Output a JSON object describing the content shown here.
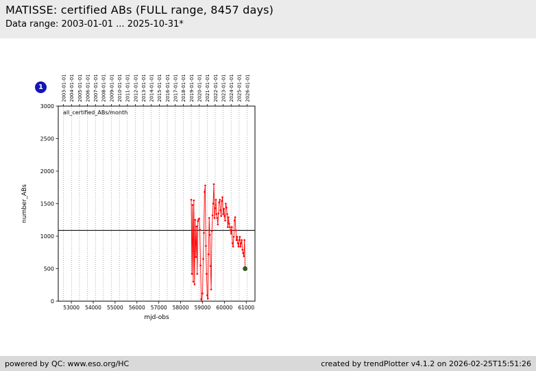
{
  "header": {
    "title": "MATISSE: certified ABs (FULL range, 8457 days)",
    "subtitle": "Data range: 2003-01-01 ... 2025-10-31*"
  },
  "badge": {
    "label": "1",
    "color": "#1414b8"
  },
  "footer": {
    "left": "powered by QC: www.eso.org/HC",
    "right": "created by trendPlotter v4.1.2 on 2026-02-25T15:51:26"
  },
  "chart_data": {
    "type": "line",
    "title": "",
    "inner_label": "all_certified_ABs/month",
    "xlabel": "mjd-obs",
    "ylabel": "number_ABs",
    "xlim": [
      52400,
      61400
    ],
    "ylim": [
      0,
      3000
    ],
    "x_ticks": [
      53000,
      54000,
      55000,
      56000,
      57000,
      58000,
      59000,
      60000,
      61000
    ],
    "y_ticks": [
      0,
      500,
      1000,
      1500,
      2000,
      2500,
      3000
    ],
    "grid": "vertical-dotted",
    "legend_position": "none",
    "mean_line": 1090,
    "top_axis": [
      {
        "label": "2003-01-01",
        "mjd": 52640
      },
      {
        "label": "2004-01-01",
        "mjd": 53005
      },
      {
        "label": "2005-01-01",
        "mjd": 53371
      },
      {
        "label": "2006-01-01",
        "mjd": 53736
      },
      {
        "label": "2007-01-01",
        "mjd": 54101
      },
      {
        "label": "2008-01-01",
        "mjd": 54466
      },
      {
        "label": "2009-01-01",
        "mjd": 54832
      },
      {
        "label": "2010-01-01",
        "mjd": 55197
      },
      {
        "label": "2011-01-01",
        "mjd": 55562
      },
      {
        "label": "2012-01-01",
        "mjd": 55927
      },
      {
        "label": "2013-01-01",
        "mjd": 56293
      },
      {
        "label": "2014-01-01",
        "mjd": 56658
      },
      {
        "label": "2015-01-01",
        "mjd": 57023
      },
      {
        "label": "2016-01-01",
        "mjd": 57388
      },
      {
        "label": "2017-01-01",
        "mjd": 57754
      },
      {
        "label": "2018-01-01",
        "mjd": 58119
      },
      {
        "label": "2019-01-01",
        "mjd": 58484
      },
      {
        "label": "2020-01-01",
        "mjd": 58849
      },
      {
        "label": "2021-01-01",
        "mjd": 59215
      },
      {
        "label": "2022-01-01",
        "mjd": 59580
      },
      {
        "label": "2023-01-01",
        "mjd": 59945
      },
      {
        "label": "2024-01-01",
        "mjd": 60310
      },
      {
        "label": "2025-01-01",
        "mjd": 60676
      },
      {
        "label": "2026-01-01",
        "mjd": 61041
      }
    ],
    "series": [
      {
        "name": "all_certified_ABs/month",
        "color": "#ff0000",
        "x": [
          58484,
          58515,
          58543,
          58574,
          58604,
          58635,
          58665,
          58696,
          58727,
          58757,
          58788,
          58818,
          58849,
          58880,
          58909,
          58940,
          58970,
          59001,
          59031,
          59062,
          59093,
          59123,
          59154,
          59184,
          59215,
          59246,
          59274,
          59305,
          59335,
          59366,
          59396,
          59427,
          59458,
          59488,
          59519,
          59549,
          59580,
          59611,
          59639,
          59670,
          59700,
          59731,
          59761,
          59792,
          59823,
          59853,
          59884,
          59914,
          59945,
          59976,
          60004,
          60035,
          60065,
          60096,
          60126,
          60157,
          60188,
          60218,
          60249,
          60279,
          60310,
          60341,
          60370,
          60401,
          60431,
          60462,
          60492,
          60523,
          60554,
          60584,
          60615,
          60645,
          60676,
          60707,
          60735,
          60766,
          60796,
          60827,
          60857,
          60888,
          60919,
          60949
        ],
        "y": [
          1560,
          420,
          1480,
          300,
          1550,
          260,
          1250,
          680,
          1150,
          420,
          1230,
          1260,
          1270,
          1100,
          550,
          30,
          0,
          120,
          650,
          1050,
          1680,
          1780,
          850,
          420,
          90,
          40,
          720,
          1280,
          1020,
          540,
          180,
          1080,
          1320,
          1500,
          1800,
          1280,
          1430,
          1560,
          1340,
          1280,
          1180,
          1350,
          1520,
          1560,
          1400,
          1310,
          1540,
          1600,
          1340,
          1420,
          1310,
          1240,
          1500,
          1440,
          1340,
          1140,
          1290,
          1190,
          1140,
          1090,
          1040,
          1140,
          890,
          840,
          990,
          1240,
          1290,
          1090,
          940,
          990,
          890,
          840,
          940,
          990,
          840,
          890,
          940,
          790,
          740,
          690,
          940,
          500
        ]
      }
    ],
    "last_point": {
      "x": 60949,
      "y": 500,
      "color": "#336600"
    }
  }
}
